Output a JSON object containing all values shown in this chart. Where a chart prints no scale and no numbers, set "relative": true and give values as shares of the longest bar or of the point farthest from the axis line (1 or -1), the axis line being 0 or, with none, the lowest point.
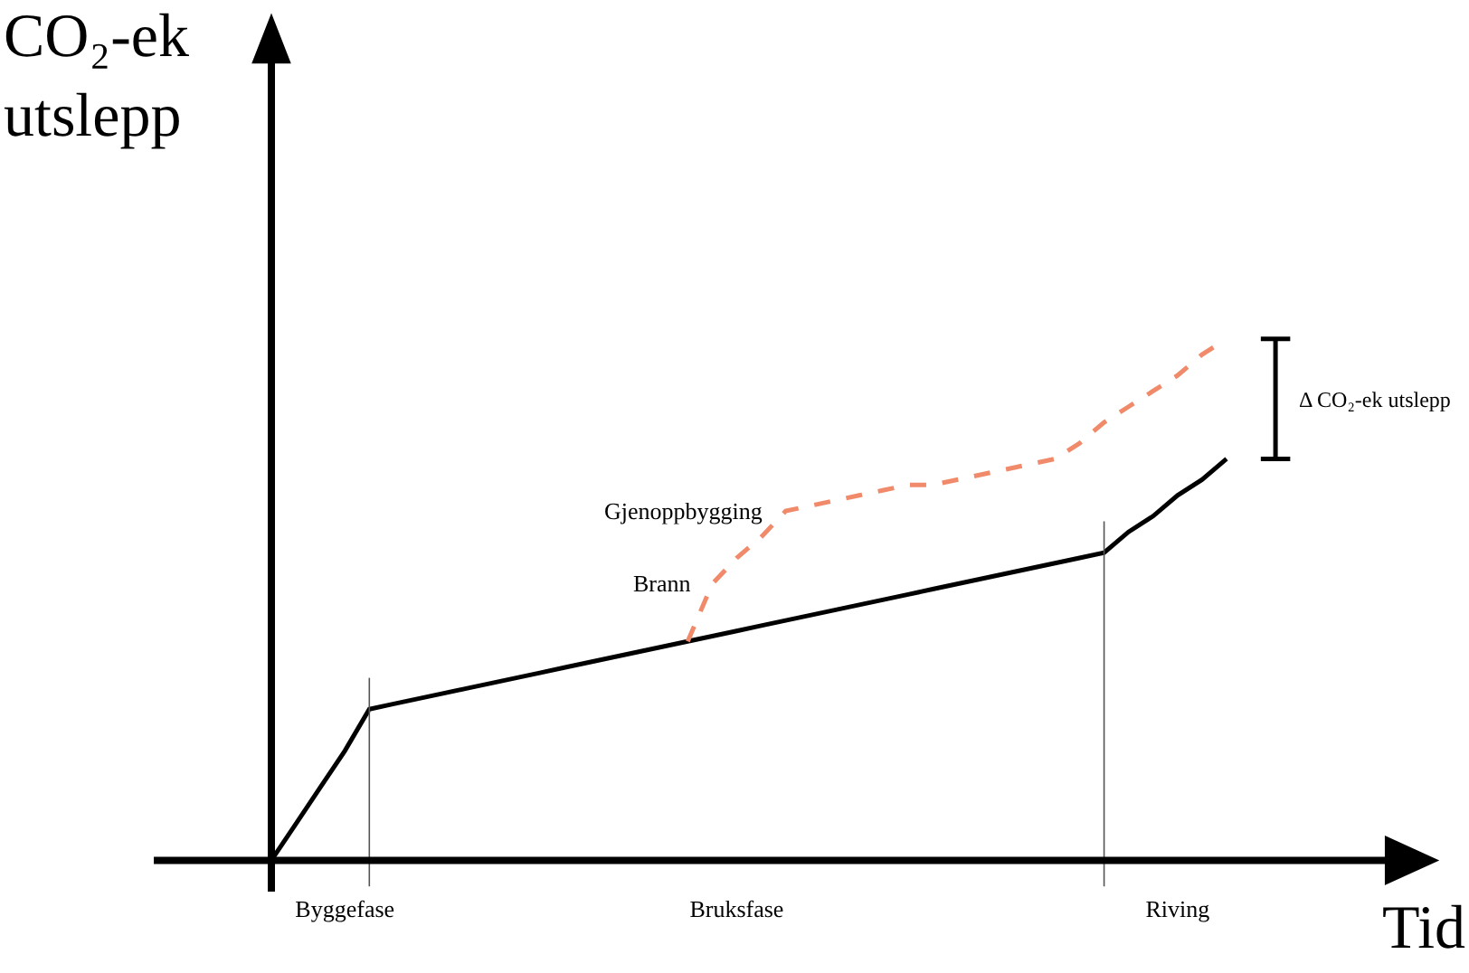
{
  "chart_data": {
    "type": "line",
    "relative": true,
    "ylabel": "CO₂-ek utslepp",
    "xlabel": "Tid",
    "categories": [
      null,
      null,
      null,
      "Byggefase",
      null,
      null,
      null,
      null,
      null,
      null,
      null,
      null,
      null,
      null,
      null,
      null,
      null,
      null,
      null,
      "Bruksfase",
      null,
      null,
      null,
      null,
      null,
      null,
      null,
      null,
      null,
      null,
      null,
      null,
      null,
      null,
      null,
      null,
      null,
      "Riving",
      null,
      null
    ],
    "series": [
      {
        "color": "#000000",
        "line_style": "solid",
        "values": [
          0,
          0.07,
          0.14,
          0.21,
          0.29,
          0.3,
          0.31,
          0.32,
          0.33,
          0.34,
          0.35,
          0.36,
          0.37,
          0.38,
          0.39,
          0.4,
          0.41,
          0.42,
          0.43,
          0.44,
          0.45,
          0.46,
          0.47,
          0.48,
          0.49,
          0.5,
          0.51,
          0.52,
          0.53,
          0.54,
          0.55,
          0.56,
          0.57,
          0.58,
          0.59,
          0.63,
          0.66,
          0.7,
          0.73,
          0.77
        ]
      },
      {
        "color": "#f08a6a",
        "line_style": "dashed",
        "values": [
          null,
          null,
          null,
          null,
          null,
          null,
          null,
          null,
          null,
          null,
          null,
          null,
          null,
          null,
          null,
          null,
          null,
          0.42,
          0.53,
          0.58,
          0.62,
          0.67,
          0.68,
          0.69,
          0.7,
          0.71,
          0.72,
          0.72,
          0.73,
          0.74,
          0.75,
          0.76,
          0.77,
          0.8,
          0.84,
          0.87,
          0.9,
          0.93,
          0.97,
          1
        ]
      }
    ],
    "annotations": [
      "Brann",
      "Gjenoppbygging",
      "Δ CO₂-ek utslepp"
    ],
    "marker": "none",
    "grid": false
  }
}
